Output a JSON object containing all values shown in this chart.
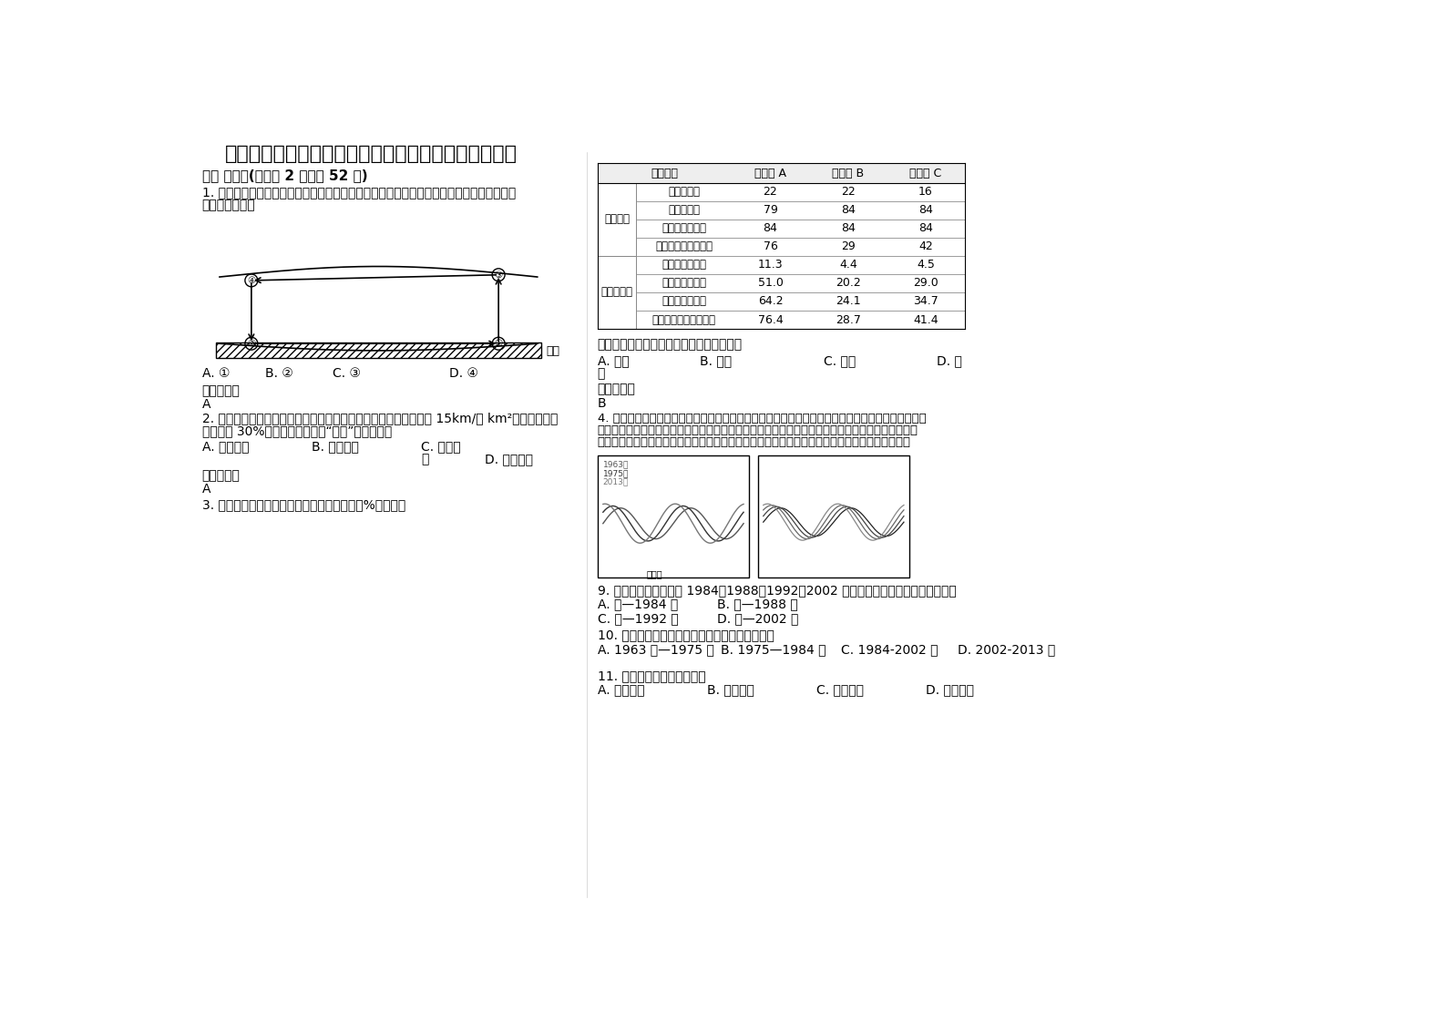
{
  "title": "江苏省扬州市杨庙中学高三地理上学期期末试卷含解析",
  "section1": "一、 选择题(每小题 2 分，共 52 分)",
  "q1_line1": "1. 右图为近地面和高空等压面状况图，若图中的气压分布状况是热力作用形成的，则图中四",
  "q1_line2": "点气温最高的是",
  "q1_options": [
    "①",
    "②",
    "③",
    "④"
  ],
  "q1_opt_labels": [
    "A. ",
    "B. ",
    "C. ",
    "D. "
  ],
  "q1_ans_label": "参考答案：",
  "q1_ans": "A",
  "q2_line1": "2. 交通一直是限制这些地区发展的因素。青海省单位面积铁路线为 15km/万 km²，仅为全国平",
  "q2_line2": "均水平的 30%，为改变此状况，“十五”期间将建成",
  "q2_optA": "A. 青藏铁路",
  "q2_optB": "B. 青新铁路",
  "q2_optC1": "C. 兰青铁",
  "q2_optC2": "路",
  "q2_optD": "D. 川青铁路",
  "q2_ans_label": "参考答案：",
  "q2_ans": "A",
  "q3_line1": "3. 读我国某地区农业资源利用评价表（单位：%），回答",
  "table_header": [
    "评价类别",
    "农作物 A",
    "农作物 B",
    "农作物 C"
  ],
  "table_cat1": "满足程度",
  "table_cat2": "资源利用率",
  "table_rows": [
    [
      "热量满足率",
      "22",
      "22",
      "16"
    ],
    [
      "水分满足率",
      "79",
      "84",
      "84"
    ],
    [
      "土壤养分满足率",
      "84",
      "84",
      "84"
    ],
    [
      "社会经济因素满足率",
      "76",
      "29",
      "42"
    ],
    [
      "光合潜力利用率",
      "11.3",
      "4.4",
      "4.5"
    ],
    [
      "光温潜力利用率",
      "51.0",
      "20.2",
      "29.0"
    ],
    [
      "气候潜力利用率",
      "64.2",
      "24.1",
      "34.7"
    ],
    [
      "气候－土壤潜力利用率",
      "76.4",
      "28.7",
      "41.4"
    ]
  ],
  "q3_question": "该地区发展农业生产的最主要限制条件是：",
  "q3_optA": "A. 光照",
  "q3_optB": "B. 气温",
  "q3_optC": "C. 降水",
  "q3_optD1": "D. 土",
  "q3_optD2": "壤",
  "q3_ans_label": "参考答案：",
  "q3_ans": "B",
  "q4_line1": "4. 牛轭湖是弯曲河流发生自然裁弯后的遗留河道，原河道的进、出口发生泥沙淤积，经历若干年后变",
  "q4_line2": "成封闭的浅水湖泊。辽河下游平原区水系密布，河流众多，水流较缓，河曲发育，河道变迁频繁，平",
  "q4_line3": "原上遗留很多废河道和牛轭湖，下图示意不同年代辽河下游的河道演变过程。据此完成下列小题。",
  "q9_line1": "9. 右图中甲乙丙丁表示 1984、1988、1992、2002 年辽河下游河道，其对应正确的是",
  "q9_optA": "A. 甲—1984 年",
  "q9_optB": "B. 乙—1988 年",
  "q9_optC": "C. 丙—1992 年",
  "q9_optD": "D. 丁—2002 年",
  "q10_line1": "10. 在辽河下游地区，牛轭湖演变最缓慢的时期是",
  "q10_optA": "A. 1963 年—1975 年",
  "q10_optB": "B. 1975—1984 年",
  "q10_optC": "C. 1984-2002 年",
  "q10_optD": "D. 2002-2013 年",
  "q11_line1": "11. 牛轭湖形成后，新的河道",
  "q11_optA": "A. 流速增大",
  "q11_optB": "B. 流程延长",
  "q11_optC": "C. 流量减小",
  "q11_optD": "D. 河床变浅",
  "dimian": "地面",
  "ref_ans": "参考答案：",
  "bg_color": "#ffffff",
  "text_color": "#000000",
  "font_size_title": 16,
  "font_size_body": 10,
  "font_size_section": 11
}
